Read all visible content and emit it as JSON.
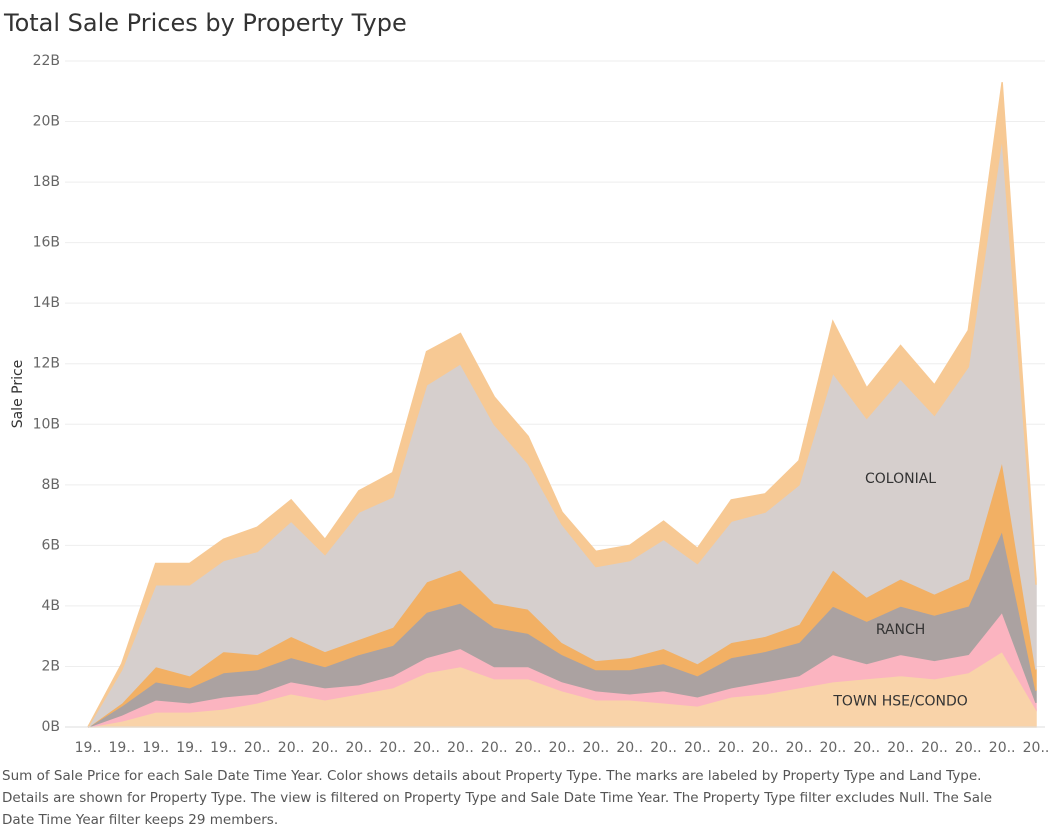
{
  "chart_data": {
    "type": "stacked_area",
    "title": "Total Sale Prices by Property Type",
    "y_label": "Sale Price",
    "caption": [
      "Sum of Sale Price for each Sale Date Time Year.  Color shows details about Property Type.  The marks are labeled by Property Type and Land Type.",
      "Details are shown for Property Type. The view is filtered on Property Type and Sale Date Time Year. The Property Type filter excludes Null. The Sale",
      "Date Time Year filter keeps 29 members."
    ],
    "categories": [
      "19..",
      "19..",
      "19..",
      "19..",
      "19..",
      "20..",
      "20..",
      "20..",
      "20..",
      "20..",
      "20..",
      "20..",
      "20..",
      "20..",
      "20..",
      "20..",
      "20..",
      "20..",
      "20..",
      "20..",
      "20..",
      "20..",
      "20..",
      "20..",
      "20..",
      "20..",
      "20..",
      "20..",
      "20.."
    ],
    "ylim": [
      0,
      22
    ],
    "yticks": [
      {
        "value": 0,
        "label": "0B"
      },
      {
        "value": 2,
        "label": "2B"
      },
      {
        "value": 4,
        "label": "4B"
      },
      {
        "value": 6,
        "label": "6B"
      },
      {
        "value": 8,
        "label": "8B"
      },
      {
        "value": 10,
        "label": "10B"
      },
      {
        "value": 12,
        "label": "12B"
      },
      {
        "value": 14,
        "label": "14B"
      },
      {
        "value": 16,
        "label": "16B"
      },
      {
        "value": 18,
        "label": "18B"
      },
      {
        "value": 20,
        "label": "20B"
      },
      {
        "value": 22,
        "label": "22B"
      }
    ],
    "grid": true,
    "series": [
      {
        "name": "TOWN HSE/CONDO",
        "color": "#f9d3a9",
        "values": [
          0,
          0.2,
          0.5,
          0.5,
          0.6,
          0.8,
          1.1,
          0.9,
          1.1,
          1.3,
          1.8,
          2.0,
          1.6,
          1.6,
          1.2,
          0.9,
          0.9,
          0.8,
          0.7,
          1.0,
          1.1,
          1.3,
          1.5,
          1.6,
          1.7,
          1.6,
          1.8,
          2.5,
          0.6
        ]
      },
      {
        "color": "#fbb4c0",
        "values": [
          0,
          0.2,
          0.4,
          0.3,
          0.4,
          0.3,
          0.4,
          0.4,
          0.3,
          0.4,
          0.5,
          0.6,
          0.4,
          0.4,
          0.3,
          0.3,
          0.2,
          0.4,
          0.3,
          0.3,
          0.4,
          0.4,
          0.9,
          0.5,
          0.7,
          0.6,
          0.6,
          1.3,
          0.2
        ]
      },
      {
        "name": "RANCH",
        "color": "#aba2a1",
        "values": [
          0,
          0.3,
          0.6,
          0.5,
          0.8,
          0.8,
          0.8,
          0.7,
          1.0,
          1.0,
          1.5,
          1.5,
          1.3,
          1.1,
          0.9,
          0.7,
          0.8,
          0.9,
          0.7,
          1.0,
          1.0,
          1.1,
          1.6,
          1.4,
          1.6,
          1.5,
          1.6,
          2.7,
          0.4
        ]
      },
      {
        "color": "#f2b064",
        "values": [
          0,
          0.1,
          0.5,
          0.4,
          0.7,
          0.5,
          0.7,
          0.5,
          0.5,
          0.6,
          1.0,
          1.1,
          0.8,
          0.8,
          0.4,
          0.3,
          0.4,
          0.5,
          0.4,
          0.5,
          0.5,
          0.6,
          1.2,
          0.8,
          0.9,
          0.7,
          0.9,
          2.3,
          0.7
        ]
      },
      {
        "name": "COLONIAL",
        "color": "#d6cfcd",
        "values": [
          0,
          1.1,
          2.7,
          3.0,
          3.0,
          3.4,
          3.8,
          3.2,
          4.2,
          4.3,
          6.5,
          6.8,
          5.9,
          4.8,
          3.9,
          3.1,
          3.2,
          3.6,
          3.3,
          4.0,
          4.1,
          4.6,
          6.5,
          5.9,
          6.6,
          5.9,
          7.0,
          10.7,
          2.8
        ]
      },
      {
        "color": "#f7c994",
        "values": [
          0,
          0.2,
          0.7,
          0.7,
          0.7,
          0.8,
          0.7,
          0.5,
          0.7,
          0.8,
          1.1,
          1.0,
          0.9,
          0.9,
          0.4,
          0.5,
          0.5,
          0.6,
          0.5,
          0.7,
          0.6,
          0.8,
          1.7,
          1.0,
          1.1,
          1.0,
          1.2,
          1.8,
          0.2
        ]
      }
    ]
  }
}
